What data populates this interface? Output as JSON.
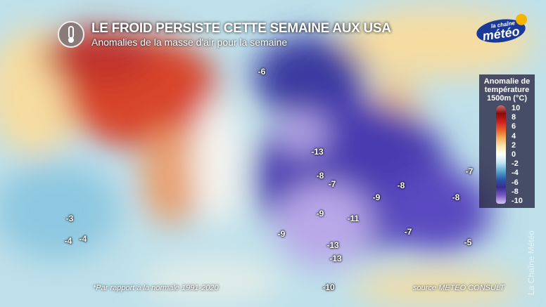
{
  "header": {
    "title": "LE FROID PERSISTE CETTE SEMAINE AUX USA",
    "subtitle": "Anomalies de la masse d'air pour la semaine",
    "icon": "thermometer-icon"
  },
  "logo": {
    "text_small": "la chaîne",
    "text_big": "météo"
  },
  "legend": {
    "title": "Anomalie de température 1500m (°C)",
    "ticks": [
      "10",
      "8",
      "6",
      "4",
      "2",
      "0",
      "-2",
      "-4",
      "-6",
      "-8",
      "-10"
    ],
    "colors": [
      "#8b0a0a",
      "#cc1f1f",
      "#e8602a",
      "#f4b060",
      "#ffffff",
      "#5da8d0",
      "#2a5aa8",
      "#3a2a8e",
      "#d8c8f0"
    ]
  },
  "anomaly_labels": [
    "-6",
    "-13",
    "-8",
    "-7",
    "-9",
    "-8",
    "-7",
    "-8",
    "-3",
    "-4",
    "-4",
    "-9",
    "-11",
    "-9",
    "-7",
    "-5",
    "-13",
    "-13",
    "-10"
  ],
  "footer": {
    "note": "*Par rapport à la normale 1991-2020",
    "source": "source METEO CONSULT",
    "watermark": "La Chaîne Météo"
  }
}
